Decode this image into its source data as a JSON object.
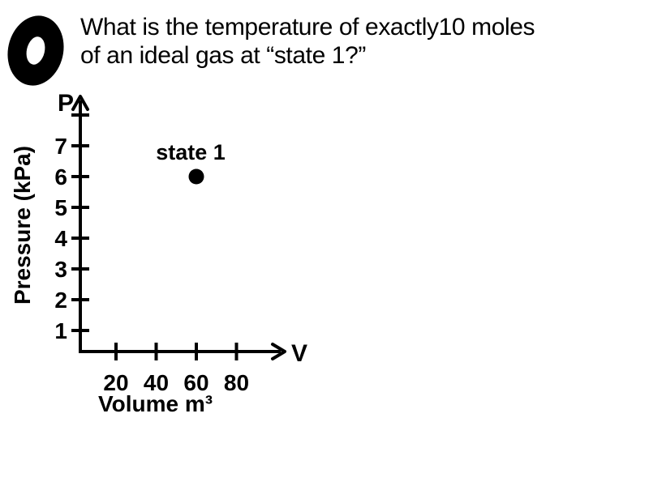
{
  "decoration": {
    "big_zero": "0"
  },
  "question": {
    "line1": "What is the temperature of exactly10 moles",
    "line2": "of an ideal gas at “state 1?”"
  },
  "colors": {
    "background": "#ffffff",
    "ink": "#000000"
  },
  "chart_data": {
    "type": "scatter",
    "title": "",
    "x_axis": {
      "symbol": "V",
      "label": "Volume m³",
      "tick_values": [
        20,
        40,
        60,
        80
      ],
      "tick_labels": [
        "20",
        "40",
        "60",
        "80"
      ],
      "range": [
        0,
        95
      ]
    },
    "y_axis": {
      "symbol": "P",
      "label": "Pressure (kPa)",
      "tick_values": [
        1,
        2,
        3,
        4,
        5,
        6,
        7
      ],
      "tick_labels": [
        "1",
        "2",
        "3",
        "4",
        "5",
        "6",
        "7"
      ],
      "has_unlabeled_top_tick": true,
      "range": [
        0,
        8.5
      ]
    },
    "points": [
      {
        "label": "state 1",
        "x": 60,
        "y": 6
      }
    ],
    "grid": false,
    "legend": false
  }
}
